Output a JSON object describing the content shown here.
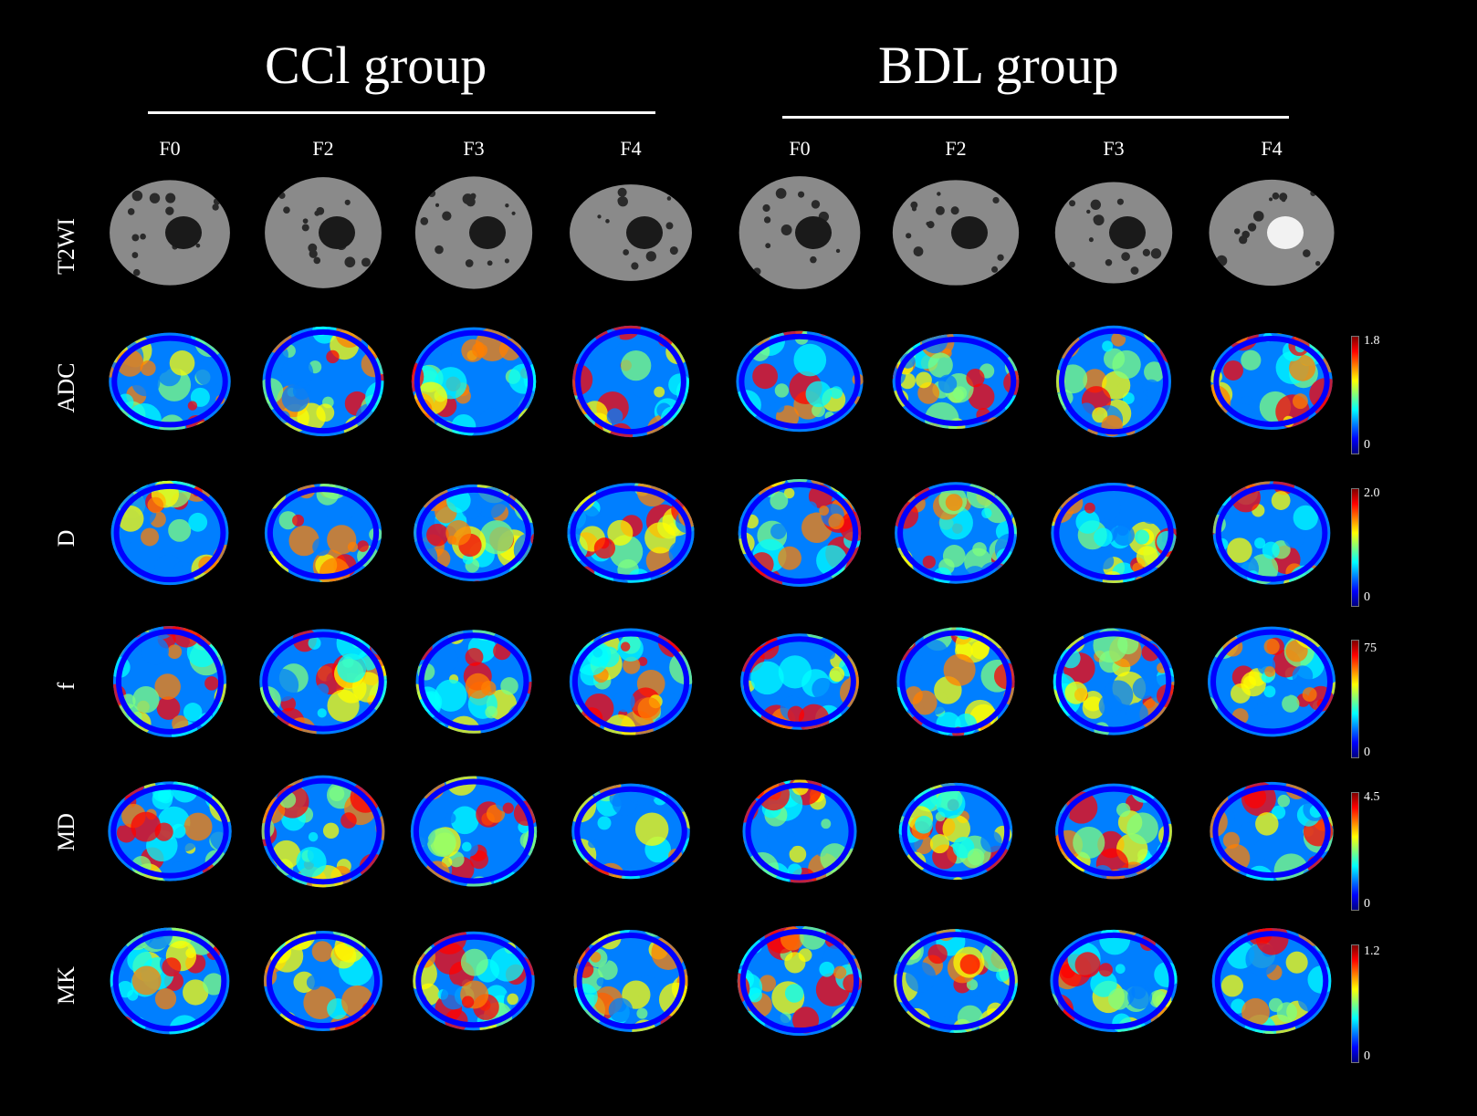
{
  "groups": [
    {
      "title": "CCl group",
      "columns": [
        "F0",
        "F2",
        "F3",
        "F4"
      ]
    },
    {
      "title": "BDL group",
      "columns": [
        "F0",
        "F2",
        "F3",
        "F4"
      ]
    }
  ],
  "rows": [
    {
      "label": "T2WI",
      "kind": "gray"
    },
    {
      "label": "ADC",
      "kind": "jet",
      "scale": {
        "max": "1.8",
        "min": "0"
      }
    },
    {
      "label": "D",
      "kind": "jet",
      "scale": {
        "max": "2.0",
        "min": "0"
      }
    },
    {
      "label": "f",
      "kind": "jet",
      "scale": {
        "max": "75",
        "min": "0"
      }
    },
    {
      "label": "MD",
      "kind": "jet",
      "scale": {
        "max": "4.5",
        "min": "0"
      }
    },
    {
      "label": "MK",
      "kind": "jet",
      "scale": {
        "max": "1.2",
        "min": "0"
      }
    }
  ],
  "colors": {
    "background": "#000000",
    "text": "#ffffff",
    "colormap": [
      "#00007f",
      "#0000ff",
      "#007fff",
      "#00ffff",
      "#7fff7f",
      "#ffff00",
      "#ff7f00",
      "#ff0000",
      "#7f0000"
    ]
  }
}
